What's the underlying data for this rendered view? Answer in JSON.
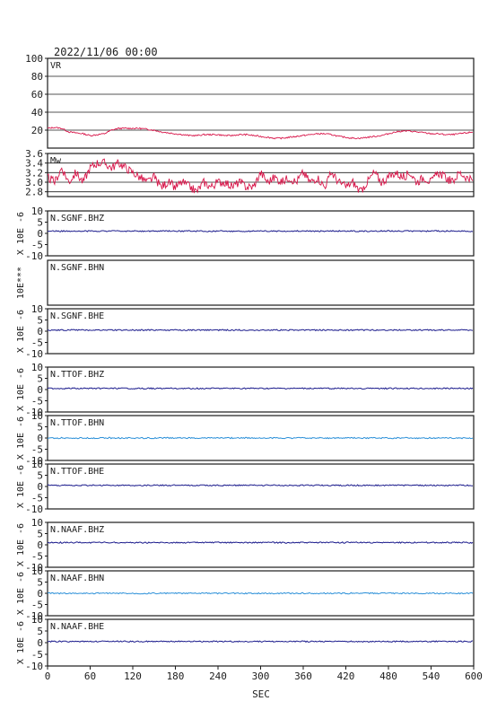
{
  "header": {
    "datetime": "2022/11/06 00:00"
  },
  "x_axis": {
    "label": "SEC",
    "ticks": [
      0,
      60,
      120,
      180,
      240,
      300,
      360,
      420,
      480,
      540,
      600
    ],
    "range": [
      0,
      600
    ]
  },
  "colors": {
    "vr_mw_trace": "#d8164a",
    "dark_trace": "#1a1a8c",
    "light_trace": "#2a8fd8",
    "axis": "#1c1c1c",
    "grid": "#1c1c1c"
  },
  "chart_data": [
    {
      "type": "line",
      "id": "vr",
      "panel_label": "VR",
      "ylim": [
        0,
        100
      ],
      "yticks": [
        20,
        40,
        60,
        80,
        100
      ],
      "grid": true,
      "x": [
        0,
        10,
        20,
        30,
        40,
        50,
        60,
        70,
        80,
        90,
        100,
        110,
        120,
        130,
        140,
        150,
        160,
        170,
        180,
        190,
        200,
        210,
        220,
        230,
        240,
        250,
        260,
        270,
        280,
        290,
        300,
        310,
        320,
        330,
        340,
        350,
        360,
        370,
        380,
        390,
        400,
        410,
        420,
        430,
        440,
        450,
        460,
        470,
        480,
        490,
        500,
        510,
        520,
        530,
        540,
        550,
        560,
        570,
        580,
        590,
        600
      ],
      "values": [
        22,
        23,
        22,
        18,
        17,
        16,
        14,
        15,
        16,
        20,
        22,
        22,
        22,
        22,
        21,
        20,
        18,
        17,
        16,
        15,
        14,
        14,
        15,
        15,
        15,
        14,
        14,
        15,
        15,
        14,
        13,
        12,
        11,
        11,
        12,
        13,
        14,
        15,
        16,
        16,
        15,
        13,
        12,
        11,
        11,
        12,
        13,
        14,
        16,
        18,
        19,
        19,
        18,
        17,
        16,
        16,
        15,
        15,
        16,
        17,
        18
      ]
    },
    {
      "type": "line",
      "id": "mw",
      "panel_label": "Mw",
      "ylim": [
        2.7,
        3.6
      ],
      "yticks": [
        2.8,
        3.0,
        3.2,
        3.4,
        3.6
      ],
      "grid": true,
      "x": [
        0,
        10,
        20,
        30,
        40,
        50,
        60,
        70,
        80,
        90,
        100,
        110,
        120,
        130,
        140,
        150,
        160,
        170,
        180,
        190,
        200,
        210,
        220,
        230,
        240,
        250,
        260,
        270,
        280,
        290,
        300,
        310,
        320,
        330,
        340,
        350,
        360,
        370,
        380,
        390,
        400,
        410,
        420,
        430,
        440,
        450,
        460,
        470,
        480,
        490,
        500,
        510,
        520,
        530,
        540,
        550,
        560,
        570,
        580,
        590,
        600
      ],
      "values": [
        3.1,
        3.0,
        3.3,
        3.0,
        3.2,
        3.0,
        3.3,
        3.4,
        3.4,
        3.3,
        3.4,
        3.3,
        3.2,
        3.1,
        3.0,
        3.1,
        2.9,
        3.0,
        2.9,
        3.0,
        2.9,
        2.8,
        3.0,
        2.9,
        3.0,
        3.0,
        2.9,
        3.0,
        2.9,
        2.9,
        3.2,
        3.0,
        3.1,
        3.0,
        3.1,
        3.0,
        3.2,
        3.0,
        3.1,
        2.9,
        3.2,
        3.0,
        2.9,
        3.0,
        2.8,
        3.0,
        3.2,
        3.0,
        3.1,
        3.2,
        3.1,
        3.2,
        3.0,
        3.1,
        3.0,
        3.2,
        3.1,
        3.0,
        3.2,
        3.1,
        3.0
      ]
    },
    {
      "type": "line",
      "id": "sgnf-bhz",
      "panel_label": "N.SGNF.BHZ",
      "ylabel": "X 10E -6",
      "ylim": [
        -10,
        10
      ],
      "yticks": [
        -10,
        -5,
        0,
        5,
        10
      ],
      "trace_level": 1,
      "trace_color": "dark",
      "has_trace": true
    },
    {
      "type": "line",
      "id": "sgnf-bhn",
      "panel_label": "N.SGNF.BHN",
      "ylabel": "10E***",
      "ylim": null,
      "yticks": [],
      "has_trace": false
    },
    {
      "type": "line",
      "id": "sgnf-bhe",
      "panel_label": "N.SGNF.BHE",
      "ylabel": "X 10E -6",
      "ylim": [
        -10,
        10
      ],
      "yticks": [
        -10,
        -5,
        0,
        5,
        10
      ],
      "trace_level": 0.5,
      "trace_color": "dark",
      "has_trace": true
    },
    {
      "type": "line",
      "id": "ttof-bhz",
      "panel_label": "N.TTOF.BHZ",
      "ylabel": "X 10E -6",
      "ylim": [
        -10,
        10
      ],
      "yticks": [
        -10,
        -5,
        0,
        5,
        10
      ],
      "trace_level": 0.5,
      "trace_color": "dark",
      "has_trace": true
    },
    {
      "type": "line",
      "id": "ttof-bhn",
      "panel_label": "N.TTOF.BHN",
      "ylabel": "X 10E -6",
      "ylim": [
        -10,
        10
      ],
      "yticks": [
        -10,
        -5,
        0,
        5,
        10
      ],
      "trace_level": 0,
      "trace_color": "light",
      "has_trace": true
    },
    {
      "type": "line",
      "id": "ttof-bhe",
      "panel_label": "N.TTOF.BHE",
      "ylabel": "X 10E -6",
      "ylim": [
        -10,
        10
      ],
      "yticks": [
        -10,
        -5,
        0,
        5,
        10
      ],
      "trace_level": 0.5,
      "trace_color": "dark",
      "has_trace": true
    },
    {
      "type": "line",
      "id": "naaf-bhz",
      "panel_label": "N.NAAF.BHZ",
      "ylabel": "X 10E -6",
      "ylim": [
        -10,
        10
      ],
      "yticks": [
        -10,
        -5,
        0,
        5,
        10
      ],
      "trace_level": 1,
      "trace_color": "dark",
      "has_trace": true
    },
    {
      "type": "line",
      "id": "naaf-bhn",
      "panel_label": "N.NAAF.BHN",
      "ylabel": "X 10E -6",
      "ylim": [
        -10,
        10
      ],
      "yticks": [
        -10,
        -5,
        0,
        5,
        10
      ],
      "trace_level": 0,
      "trace_color": "light",
      "has_trace": true
    },
    {
      "type": "line",
      "id": "naaf-bhe",
      "panel_label": "N.NAAF.BHE",
      "ylabel": "X 10E -6",
      "ylim": [
        -10,
        10
      ],
      "yticks": [
        -10,
        -5,
        0,
        5,
        10
      ],
      "trace_level": 0.5,
      "trace_color": "dark",
      "has_trace": true
    }
  ]
}
